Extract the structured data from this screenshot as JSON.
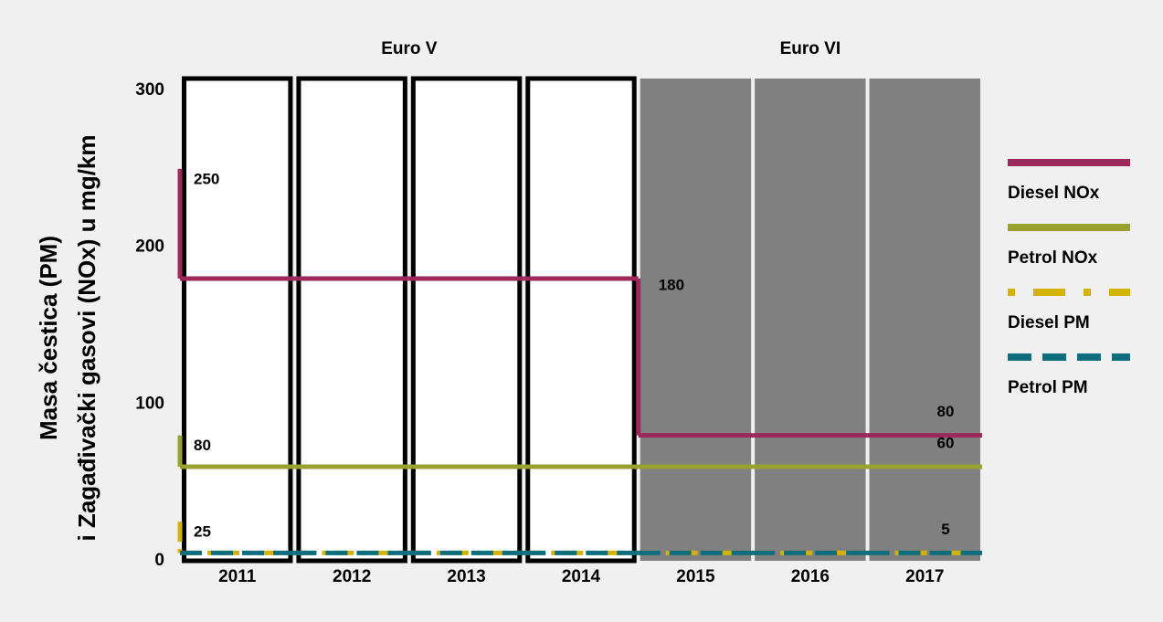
{
  "chart_data": {
    "type": "step",
    "y_label_lines": [
      "Masa čestica (PM)",
      "i Zagađivački gasovi (NOx) u mg/km"
    ],
    "categories": [
      "2011",
      "2012",
      "2013",
      "2014",
      "2015",
      "2016",
      "2017"
    ],
    "periods": [
      {
        "label": "Euro V",
        "count": 4,
        "style": "outlined"
      },
      {
        "label": "Euro VI",
        "count": 3,
        "style": "filled"
      }
    ],
    "ylim": [
      0,
      300
    ],
    "yticks": [
      0,
      100,
      200,
      300
    ],
    "series": [
      {
        "name": "Diesel NOx",
        "color": "#9b2a5a",
        "style": "solid",
        "start": 250,
        "values": [
          180,
          180,
          180,
          180,
          80,
          80,
          80
        ]
      },
      {
        "name": "Petrol NOx",
        "color": "#9aa12e",
        "style": "solid",
        "start": 80,
        "values": [
          60,
          60,
          60,
          60,
          60,
          60,
          60
        ]
      },
      {
        "name": "Diesel PM",
        "color": "#d4b20a",
        "style": "dashdot",
        "start": 25,
        "values": [
          5,
          5,
          5,
          5,
          5,
          5,
          5
        ]
      },
      {
        "name": "Petrol PM",
        "color": "#0e6e7e",
        "style": "dashed",
        "values": [
          5,
          5,
          5,
          5,
          5,
          5,
          5
        ]
      }
    ]
  }
}
